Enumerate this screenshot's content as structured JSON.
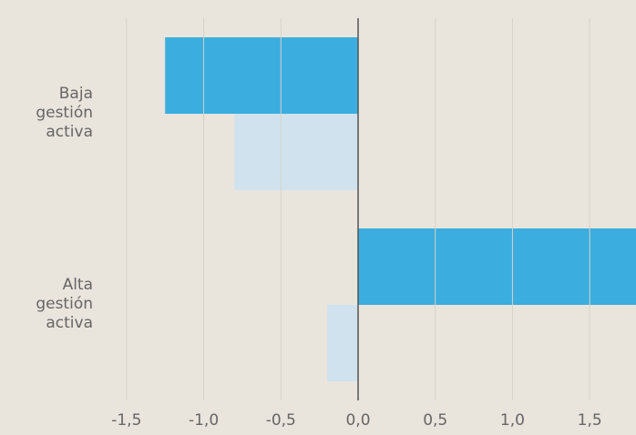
{
  "chart_data": {
    "type": "hbar",
    "categories": [
      "Baja gestión activa",
      "Alta gestión activa"
    ],
    "series": [
      {
        "color": "#3badde",
        "values": [
          -1.25,
          1.8
        ]
      },
      {
        "color": "#cfe2ee",
        "values": [
          -0.8,
          -0.2
        ]
      }
    ],
    "xlim": [
      -1.8,
      1.8
    ],
    "xticks": [
      {
        "value": -1.5,
        "label": "-1,5"
      },
      {
        "value": -1.0,
        "label": "-1,0"
      },
      {
        "value": -0.5,
        "label": "-0,5"
      },
      {
        "value": 0,
        "label": "0,0"
      },
      {
        "value": 0.5,
        "label": "0,5"
      },
      {
        "value": 1.0,
        "label": "1,0"
      },
      {
        "value": 1.5,
        "label": "1,5"
      }
    ],
    "grid": true
  }
}
